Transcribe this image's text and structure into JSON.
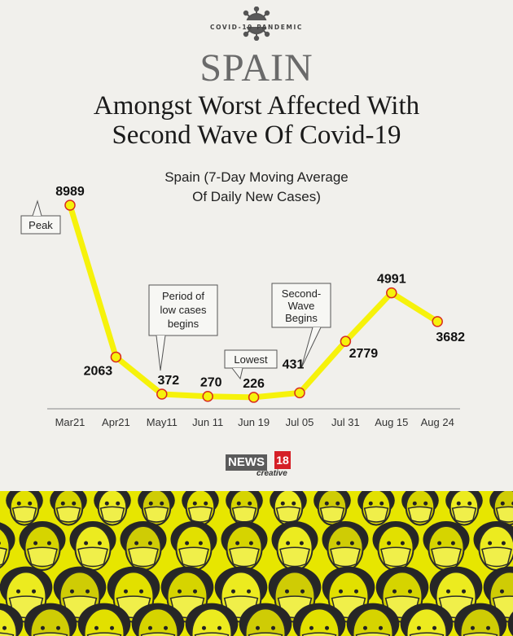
{
  "header": {
    "tagline": "COVID-19 PANDEMIC",
    "country": "SPAIN",
    "headline_line1": "Amongst Worst Affected With",
    "headline_line2": "Second Wave Of Covid-19"
  },
  "chart_data": {
    "type": "line",
    "title_line1": "Spain (7-Day Moving Average",
    "title_line2": "Of Daily New Cases)",
    "categories": [
      "Mar21",
      "Apr21",
      "May11",
      "Jun 11",
      "Jun 19",
      "Jul 05",
      "Jul 31",
      "Aug 15",
      "Aug 24"
    ],
    "values": [
      8989,
      2063,
      372,
      270,
      226,
      431,
      2779,
      4991,
      3682
    ],
    "data_labels": [
      "8989",
      "2063",
      "372",
      "270",
      "226",
      "431",
      "2779",
      "4991",
      "3682"
    ],
    "annotations": [
      {
        "text": "Peak",
        "category": "Mar21"
      },
      {
        "text": "Period of low cases begins",
        "category": "May11"
      },
      {
        "text": "Lowest",
        "category": "Jun 19"
      },
      {
        "text": "Second-Wave Begins",
        "category": "Jul 05"
      }
    ],
    "line_color": "#f6f20b",
    "marker_stroke": "#d92b1f",
    "ylim": [
      0,
      9000
    ],
    "grid": false
  },
  "annotations": {
    "peak": "Peak",
    "low_1": "Period of",
    "low_2": "low cases",
    "low_3": "begins",
    "lowest": "Lowest",
    "second_1": "Second-",
    "second_2": "Wave",
    "second_3": "Begins"
  },
  "logo": {
    "news": "NEWS",
    "num": "18",
    "creative": "creative"
  },
  "colors": {
    "background": "#f1f0ec",
    "accent_yellow": "#f6f20b",
    "brand_red": "#d51f26"
  }
}
